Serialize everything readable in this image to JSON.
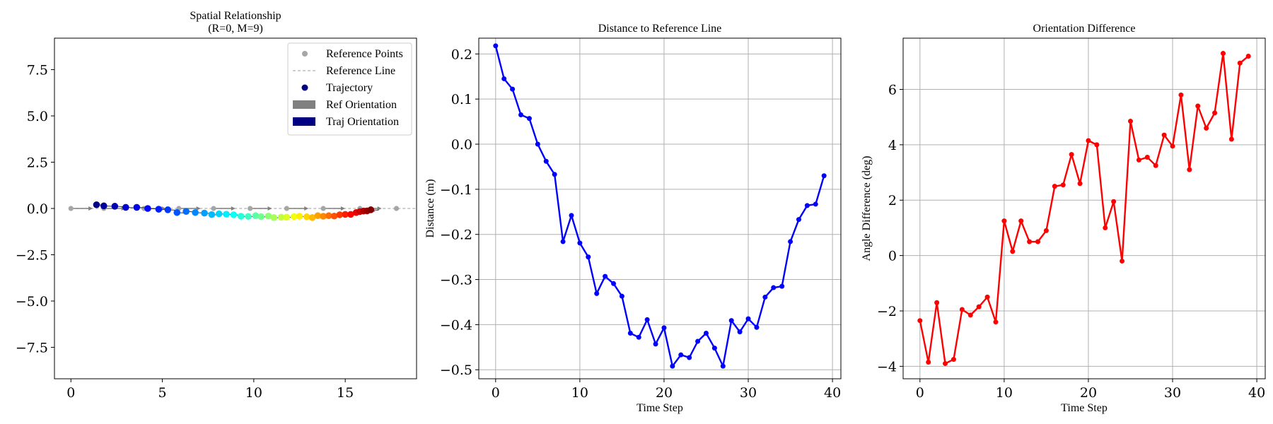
{
  "chart_data": [
    {
      "type": "scatter",
      "title": "Spatial Relationship",
      "subtitle": "(R=0, M=9)",
      "xlim": [
        -0.9,
        18.9
      ],
      "ylim": [
        -9.2,
        9.2
      ],
      "xticks": [
        0,
        5,
        10,
        15
      ],
      "xtick_labels": [
        "0",
        "5",
        "10",
        "15"
      ],
      "yticks": [
        -7.5,
        -5.0,
        -2.5,
        0.0,
        2.5,
        5.0,
        7.5
      ],
      "ytick_labels": [
        "−7.5",
        "−5.0",
        "−2.5",
        "0.0",
        "2.5",
        "5.0",
        "7.5"
      ],
      "grid": false,
      "legend_position": "top-right",
      "legend": [
        "Reference Points",
        "Reference Line",
        "Trajectory",
        "Ref Orientation",
        "Traj Orientation"
      ],
      "reference_points": {
        "x": [
          0,
          1.8,
          4,
          5.9,
          7.8,
          9.8,
          11.8,
          13.8,
          15.8,
          17.8
        ],
        "y": [
          0,
          0,
          0,
          0,
          0,
          0,
          0,
          0,
          0,
          0
        ]
      },
      "trajectory": {
        "x": [
          1.4,
          1.8,
          2.4,
          3.0,
          3.6,
          4.2,
          4.8,
          5.3,
          5.8,
          6.3,
          6.8,
          7.3,
          7.7,
          8.1,
          8.5,
          8.9,
          9.3,
          9.7,
          10.1,
          10.4,
          10.8,
          11.1,
          11.5,
          11.8,
          12.2,
          12.5,
          12.9,
          13.2,
          13.5,
          13.8,
          14.1,
          14.4,
          14.7,
          15.0,
          15.3,
          15.6,
          15.8,
          16.0,
          16.2,
          16.4
        ],
        "y": [
          0.2,
          0.14,
          0.12,
          0.06,
          0.06,
          0.0,
          -0.04,
          -0.07,
          -0.22,
          -0.16,
          -0.22,
          -0.25,
          -0.33,
          -0.29,
          -0.31,
          -0.34,
          -0.42,
          -0.43,
          -0.39,
          -0.44,
          -0.41,
          -0.49,
          -0.47,
          -0.47,
          -0.44,
          -0.42,
          -0.45,
          -0.49,
          -0.39,
          -0.42,
          -0.39,
          -0.41,
          -0.34,
          -0.32,
          -0.32,
          -0.22,
          -0.17,
          -0.14,
          -0.13,
          -0.07
        ]
      },
      "colors": {
        "reference": "#a6a6a6",
        "trajectory_colormap": "jet",
        "ref_orientation": "#808080",
        "traj_orientation": "#000080"
      }
    },
    {
      "type": "line",
      "title": "Distance to Reference Line",
      "xlabel": "Time Step",
      "ylabel": "Distance (m)",
      "xlim": [
        -2,
        41
      ],
      "ylim": [
        -0.52,
        0.235
      ],
      "xticks": [
        0,
        10,
        20,
        30,
        40
      ],
      "xtick_labels": [
        "0",
        "10",
        "20",
        "30",
        "40"
      ],
      "yticks": [
        -0.5,
        -0.4,
        -0.3,
        -0.2,
        -0.1,
        0.0,
        0.1,
        0.2
      ],
      "ytick_labels": [
        "−0.5",
        "−0.4",
        "−0.3",
        "−0.2",
        "−0.1",
        "0.0",
        "0.1",
        "0.2"
      ],
      "grid": true,
      "color": "#0000ff",
      "series": [
        {
          "x": [
            0,
            1,
            2,
            3,
            4,
            5,
            6,
            7,
            8,
            9,
            10,
            11,
            12,
            13,
            14,
            15,
            16,
            17,
            18,
            19,
            20,
            21,
            22,
            23,
            24,
            25,
            26,
            27,
            28,
            29,
            30,
            31,
            32,
            33,
            34,
            35,
            36,
            37,
            38,
            39
          ],
          "values": [
            0.218,
            0.145,
            0.122,
            0.065,
            0.057,
            0.0,
            -0.038,
            -0.067,
            -0.216,
            -0.158,
            -0.219,
            -0.25,
            -0.331,
            -0.293,
            -0.309,
            -0.337,
            -0.419,
            -0.428,
            -0.389,
            -0.443,
            -0.407,
            -0.492,
            -0.467,
            -0.473,
            -0.437,
            -0.419,
            -0.452,
            -0.492,
            -0.391,
            -0.416,
            -0.387,
            -0.406,
            -0.339,
            -0.318,
            -0.315,
            -0.216,
            -0.167,
            -0.136,
            -0.133,
            -0.07
          ]
        }
      ]
    },
    {
      "type": "line",
      "title": "Orientation Difference",
      "xlabel": "Time Step",
      "ylabel": "Angle Difference (deg)",
      "xlim": [
        -2,
        41
      ],
      "ylim": [
        -4.45,
        7.85
      ],
      "xticks": [
        0,
        10,
        20,
        30,
        40
      ],
      "xtick_labels": [
        "0",
        "10",
        "20",
        "30",
        "40"
      ],
      "yticks": [
        -4,
        -2,
        0,
        2,
        4,
        6
      ],
      "ytick_labels": [
        "−4",
        "−2",
        "0",
        "2",
        "4",
        "6"
      ],
      "grid": true,
      "color": "#ff0000",
      "series": [
        {
          "x": [
            0,
            1,
            2,
            3,
            4,
            5,
            6,
            7,
            8,
            9,
            10,
            11,
            12,
            13,
            14,
            15,
            16,
            17,
            18,
            19,
            20,
            21,
            22,
            23,
            24,
            25,
            26,
            27,
            28,
            29,
            30,
            31,
            32,
            33,
            34,
            35,
            36,
            37,
            38,
            39
          ],
          "values": [
            -2.35,
            -3.85,
            -1.7,
            -3.9,
            -3.75,
            -1.95,
            -2.15,
            -1.85,
            -1.5,
            -2.4,
            1.25,
            0.15,
            1.25,
            0.5,
            0.5,
            0.9,
            2.5,
            2.55,
            3.65,
            2.6,
            4.15,
            4.0,
            1.0,
            1.95,
            -0.2,
            4.85,
            3.45,
            3.55,
            3.25,
            4.35,
            3.95,
            5.8,
            3.1,
            5.4,
            4.6,
            5.15,
            7.3,
            4.2,
            6.95,
            7.2
          ]
        }
      ]
    }
  ]
}
